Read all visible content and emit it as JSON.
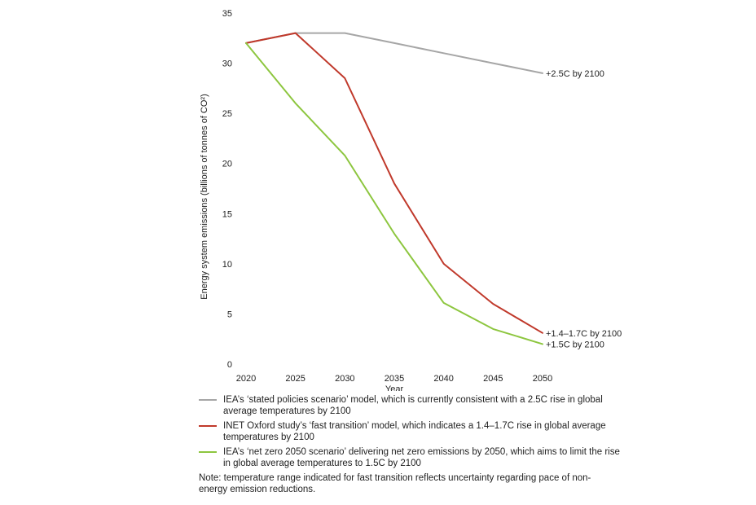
{
  "chart_data": {
    "type": "line",
    "x": [
      2020,
      2025,
      2030,
      2035,
      2040,
      2045,
      2050
    ],
    "xlabel": "Year",
    "ylabel": "Energy system emissions (billions of tonnes of CO²)",
    "ylim": [
      0,
      35
    ],
    "yticks": [
      0,
      5,
      10,
      15,
      20,
      25,
      30,
      35
    ],
    "xticks": [
      2020,
      2025,
      2030,
      2035,
      2040,
      2045,
      2050
    ],
    "grid": false,
    "legend_position": "bottom",
    "series": [
      {
        "key": "stated",
        "color": "#a6a6a6",
        "values": [
          32,
          33,
          33,
          32,
          31,
          30,
          29
        ],
        "end_label": "+2.5C by 2100",
        "legend": "IEA’s ‘stated policies scenario’ model, which is currently consistent with a 2.5C rise in global average temperatures by 2100"
      },
      {
        "key": "fast",
        "color": "#c0392b",
        "values": [
          32,
          33,
          28.5,
          18,
          10,
          6,
          3.1
        ],
        "end_label": "+1.4–1.7C by 2100",
        "legend": "INET Oxford study’s ‘fast transition’ model, which indicates a 1.4–1.7C rise in global average temperatures by 2100"
      },
      {
        "key": "netzero",
        "color": "#8dc63f",
        "values": [
          32,
          26,
          20.8,
          13,
          6.1,
          3.5,
          2
        ],
        "end_label": "+1.5C by 2100",
        "legend": "IEA’s ‘net zero 2050 scenario’ delivering net zero emissions by 2050, which aims to limit the rise in global average temperatures to 1.5C by 2100"
      }
    ],
    "note": "Note: temperature range indicated for fast transition reflects uncertainty regarding pace of non-energy emission reductions."
  }
}
